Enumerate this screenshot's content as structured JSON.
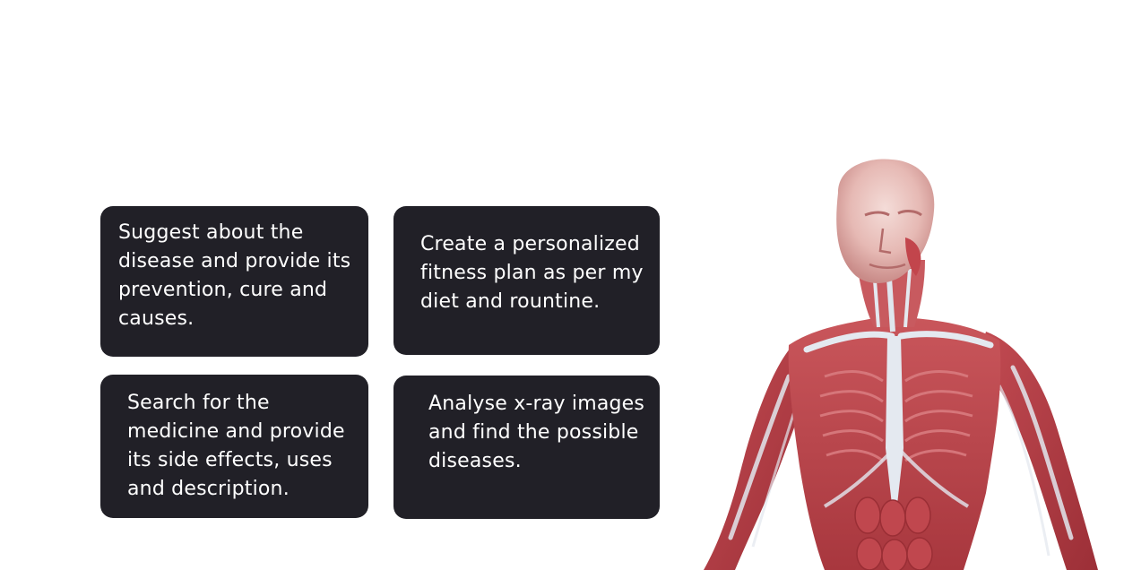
{
  "cards": [
    {
      "text": "Suggest about the\ndisease and provide its\nprevention, cure and\ncauses."
    },
    {
      "text": "Create a personalized\nfitness plan as per my\ndiet and rountine."
    },
    {
      "text": "Search for the\nmedicine and provide\nits side effects, uses\nand description."
    },
    {
      "text": "Analyse x-ray images\nand find the possible\ndiseases."
    }
  ],
  "colors": {
    "card_background": "#212027",
    "card_text": "#ffffff",
    "page_background": "#ffffff",
    "muscle": "#b8434a",
    "tendon": "#dfe6ee"
  },
  "illustration": {
    "icon": "human-anatomy-muscle-figure"
  }
}
